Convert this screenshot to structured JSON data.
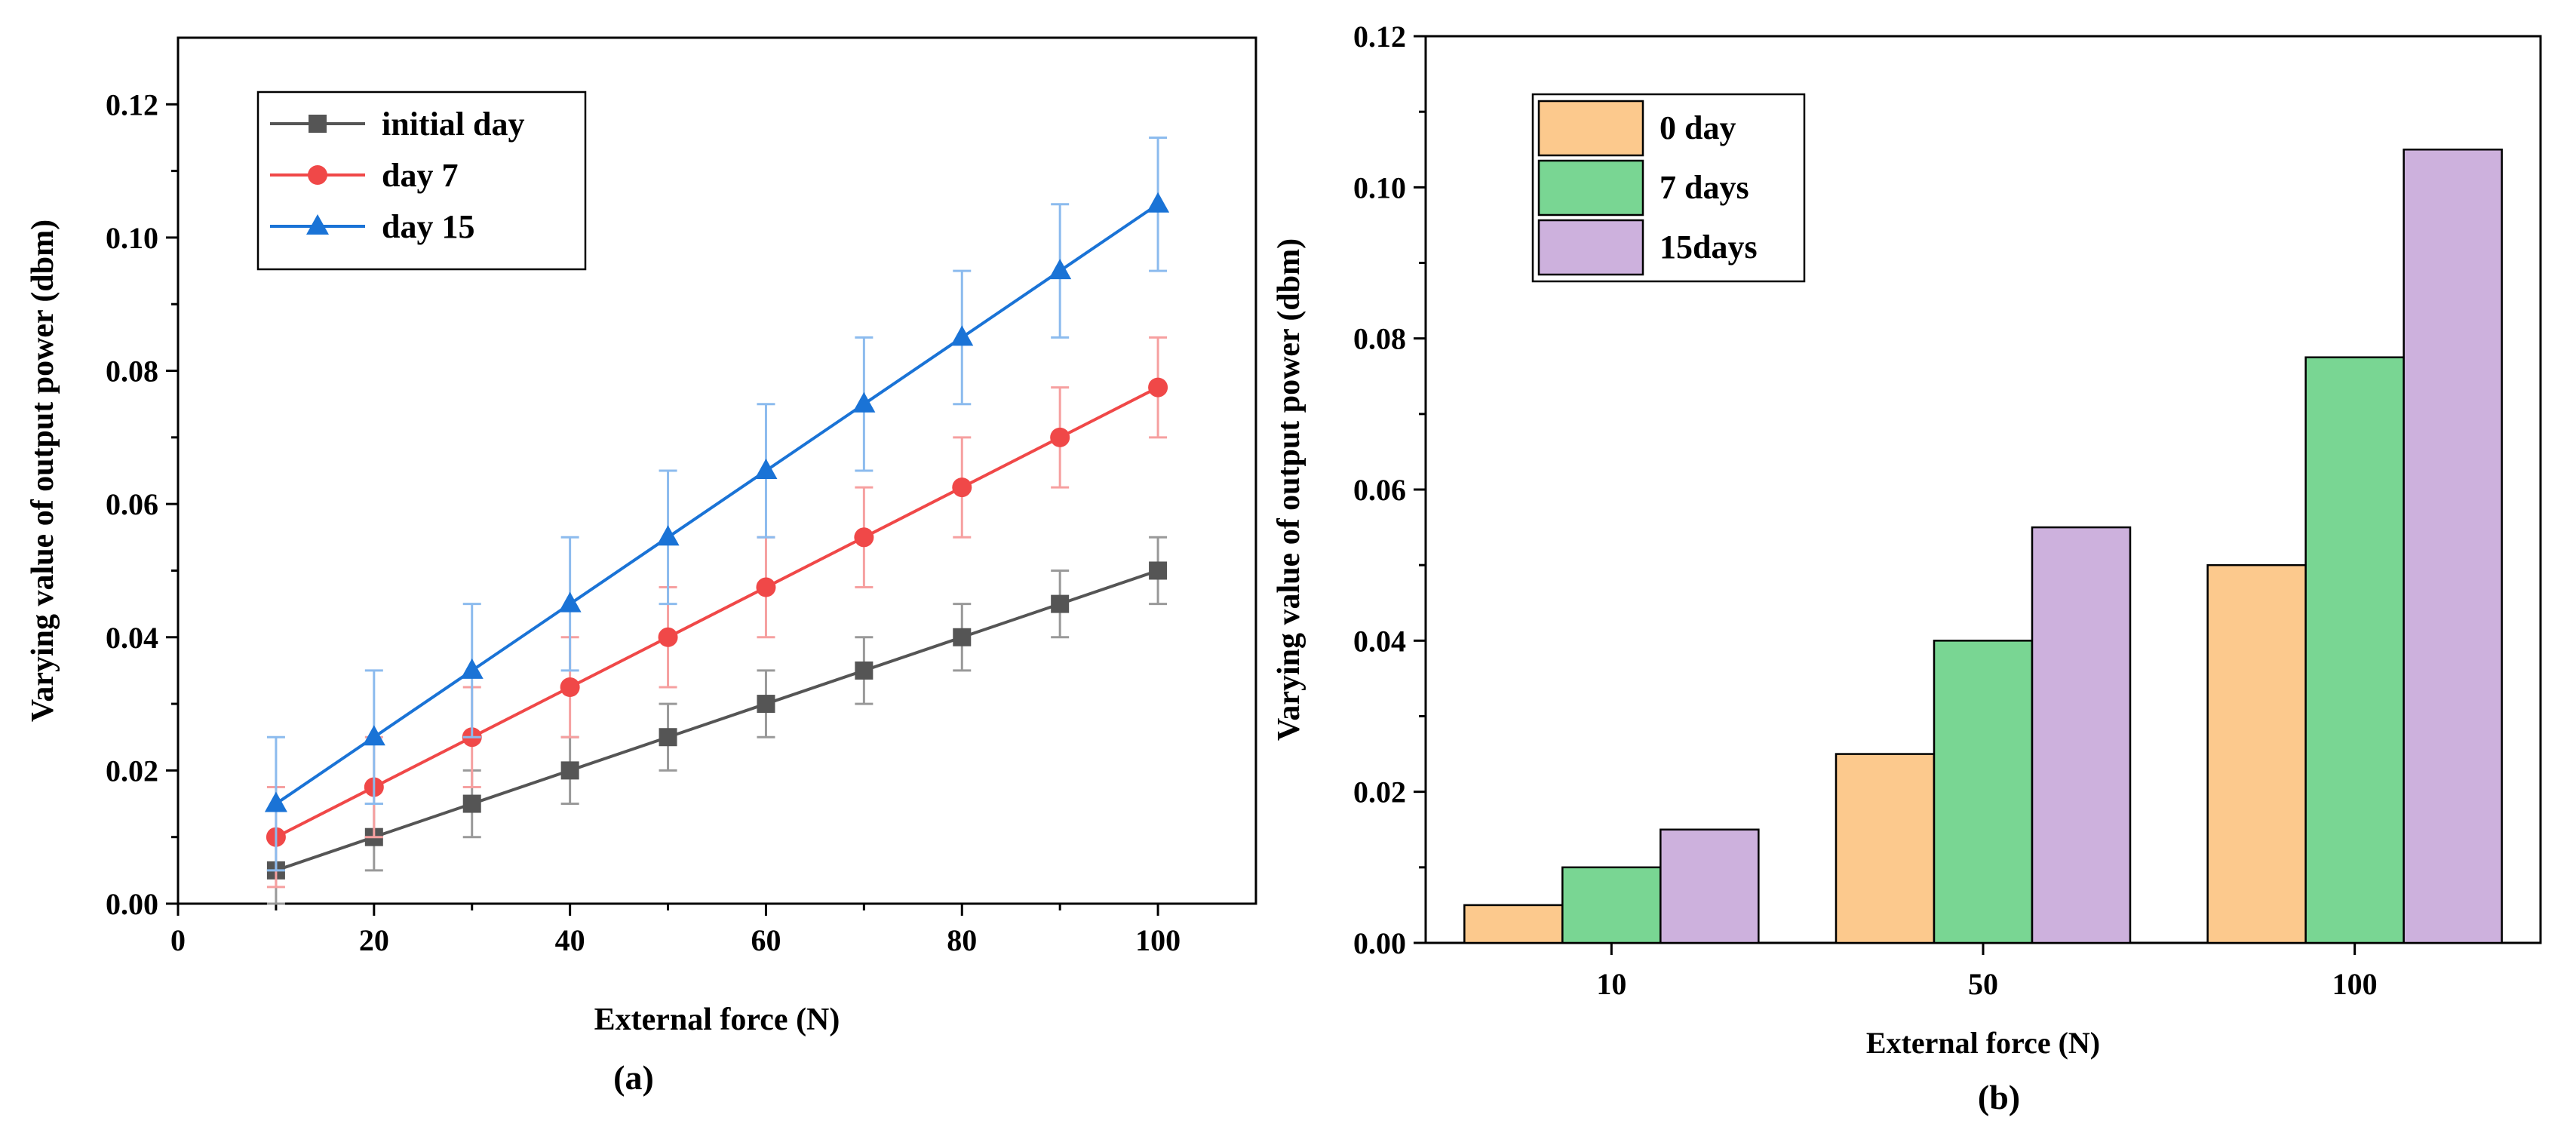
{
  "chart_data": [
    {
      "type": "line",
      "caption": "(a)",
      "xlabel": "External force (N)",
      "ylabel": "Varying value of output power (dbm)",
      "xlim": [
        0,
        110
      ],
      "ylim": [
        0,
        0.13
      ],
      "xticks": [
        "0",
        "20",
        "40",
        "60",
        "80",
        "100"
      ],
      "yticks": [
        "0.00",
        "0.02",
        "0.04",
        "0.06",
        "0.08",
        "0.10",
        "0.12"
      ],
      "legend_position": "top-left",
      "x": [
        10,
        20,
        30,
        40,
        50,
        60,
        70,
        80,
        90,
        100
      ],
      "series": [
        {
          "name": "initial day",
          "color": "#555555",
          "marker": "square",
          "values": [
            0.005,
            0.01,
            0.015,
            0.02,
            0.025,
            0.03,
            0.035,
            0.04,
            0.045,
            0.05
          ],
          "error": [
            0.005,
            0.005,
            0.005,
            0.005,
            0.005,
            0.005,
            0.005,
            0.005,
            0.005,
            0.005
          ]
        },
        {
          "name": "day 7",
          "color": "#f04848",
          "marker": "circle",
          "values": [
            0.01,
            0.0175,
            0.025,
            0.0325,
            0.04,
            0.0475,
            0.055,
            0.0625,
            0.07,
            0.0775
          ],
          "error": [
            0.0075,
            0.0075,
            0.0075,
            0.0075,
            0.0075,
            0.0075,
            0.0075,
            0.0075,
            0.0075,
            0.0075
          ]
        },
        {
          "name": "day 15",
          "color": "#1a73d6",
          "marker": "triangle",
          "values": [
            0.015,
            0.025,
            0.035,
            0.045,
            0.055,
            0.065,
            0.075,
            0.085,
            0.095,
            0.105
          ],
          "error": [
            0.01,
            0.01,
            0.01,
            0.01,
            0.01,
            0.01,
            0.01,
            0.01,
            0.01,
            0.01
          ]
        }
      ]
    },
    {
      "type": "bar",
      "caption": "(b)",
      "xlabel": "External force (N)",
      "ylabel": "Varying value of output power (dbm)",
      "ylim": [
        0,
        0.12
      ],
      "yticks": [
        "0.00",
        "0.02",
        "0.04",
        "0.06",
        "0.08",
        "0.10",
        "0.12"
      ],
      "categories": [
        "10",
        "50",
        "100"
      ],
      "legend_position": "top-left",
      "series": [
        {
          "name": "0 day",
          "color": "#fcc98d",
          "values": [
            0.005,
            0.025,
            0.05
          ]
        },
        {
          "name": "7 days",
          "color": "#79d693",
          "values": [
            0.01,
            0.04,
            0.0775
          ]
        },
        {
          "name": "15days",
          "color": "#cdb1dd",
          "values": [
            0.015,
            0.055,
            0.105
          ]
        }
      ]
    }
  ]
}
